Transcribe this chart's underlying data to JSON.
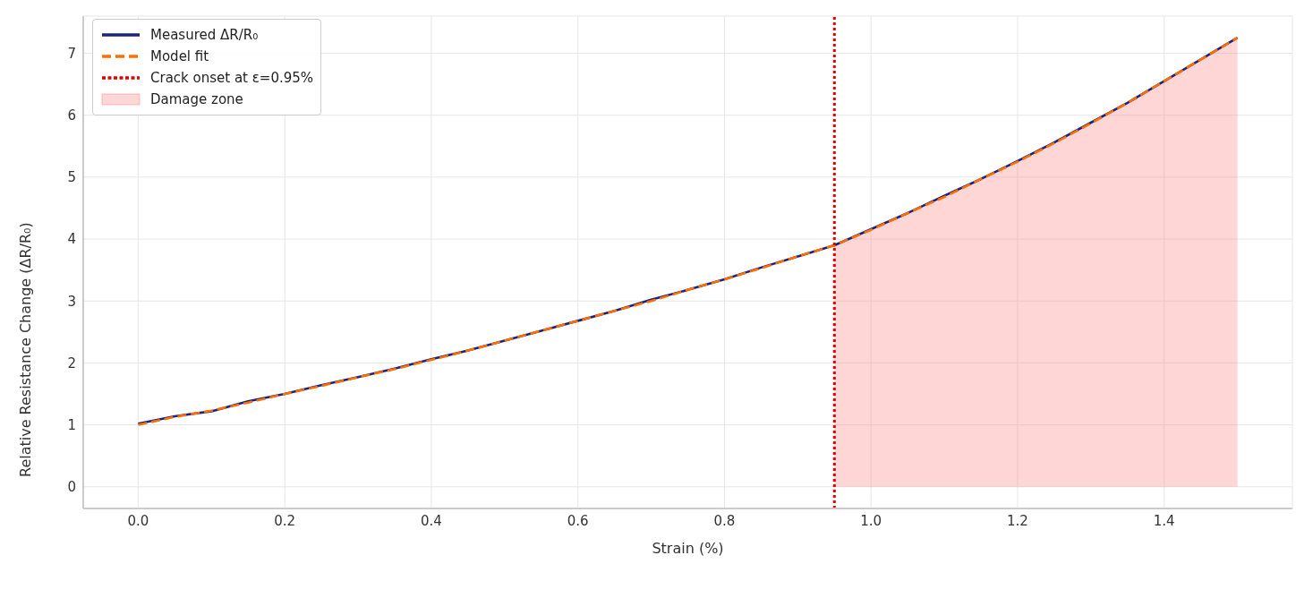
{
  "chart_data": {
    "type": "line",
    "xlabel": "Strain (%)",
    "ylabel": "Relative Resistance Change (ΔR/R₀)",
    "xlim": [
      -0.075,
      1.575
    ],
    "ylim": [
      -0.35,
      7.6
    ],
    "xticks": [
      {
        "value": 0,
        "label": "0.0"
      },
      {
        "value": 0.2,
        "label": "0.2"
      },
      {
        "value": 0.4,
        "label": "0.4"
      },
      {
        "value": 0.6,
        "label": "0.6"
      },
      {
        "value": 0.8,
        "label": "0.8"
      },
      {
        "value": 1,
        "label": "1.0"
      },
      {
        "value": 1.2,
        "label": "1.2"
      },
      {
        "value": 1.4,
        "label": "1.4"
      }
    ],
    "yticks": [
      0,
      1,
      2,
      3,
      4,
      5,
      6,
      7
    ],
    "grid": true,
    "legend": "top left",
    "marker": "none",
    "series": [
      {
        "name": "Measured ΔR/R₀",
        "color": "#1a237e",
        "line_style": "solid",
        "x": [
          0,
          0.05,
          0.1,
          0.15,
          0.2,
          0.25,
          0.3,
          0.35,
          0.4,
          0.45,
          0.5,
          0.55,
          0.6,
          0.65,
          0.7,
          0.75,
          0.8,
          0.85,
          0.9,
          0.95,
          1.0,
          1.05,
          1.1,
          1.15,
          1.2,
          1.25,
          1.3,
          1.35,
          1.4,
          1.45,
          1.5
        ],
        "values": [
          1.02,
          1.14,
          1.22,
          1.38,
          1.5,
          1.64,
          1.77,
          1.91,
          2.06,
          2.2,
          2.36,
          2.52,
          2.68,
          2.84,
          3.02,
          3.18,
          3.35,
          3.54,
          3.72,
          3.9,
          4.16,
          4.42,
          4.7,
          4.97,
          5.26,
          5.56,
          5.88,
          6.2,
          6.55,
          6.9,
          7.25
        ]
      },
      {
        "name": "Model fit",
        "color": "#ff6f00",
        "line_style": "dashed",
        "x": [
          0,
          0.05,
          0.1,
          0.15,
          0.2,
          0.25,
          0.3,
          0.35,
          0.4,
          0.45,
          0.5,
          0.55,
          0.6,
          0.65,
          0.7,
          0.75,
          0.8,
          0.85,
          0.9,
          0.95,
          1.0,
          1.05,
          1.1,
          1.15,
          1.2,
          1.25,
          1.3,
          1.35,
          1.4,
          1.45,
          1.5
        ],
        "values": [
          1.0,
          1.13,
          1.23,
          1.36,
          1.5,
          1.63,
          1.77,
          1.9,
          2.05,
          2.2,
          2.36,
          2.52,
          2.68,
          2.84,
          3.0,
          3.18,
          3.35,
          3.53,
          3.72,
          3.9,
          4.15,
          4.42,
          4.68,
          4.97,
          5.25,
          5.55,
          5.87,
          6.2,
          6.55,
          6.9,
          7.25
        ]
      },
      {
        "name": "Crack onset at ε=0.95%",
        "color": "#e00000",
        "line_style": "dotted",
        "x": [
          0.95,
          0.95
        ],
        "values": [
          -0.35,
          7.6
        ]
      },
      {
        "name": "Damage zone",
        "type": "area",
        "color": "#ff8080",
        "x": [
          0.95,
          1.0,
          1.05,
          1.1,
          1.15,
          1.2,
          1.25,
          1.3,
          1.35,
          1.4,
          1.45,
          1.5
        ],
        "values": [
          3.9,
          4.15,
          4.42,
          4.68,
          4.97,
          5.25,
          5.55,
          5.87,
          6.2,
          6.55,
          6.9,
          7.25
        ]
      }
    ]
  }
}
